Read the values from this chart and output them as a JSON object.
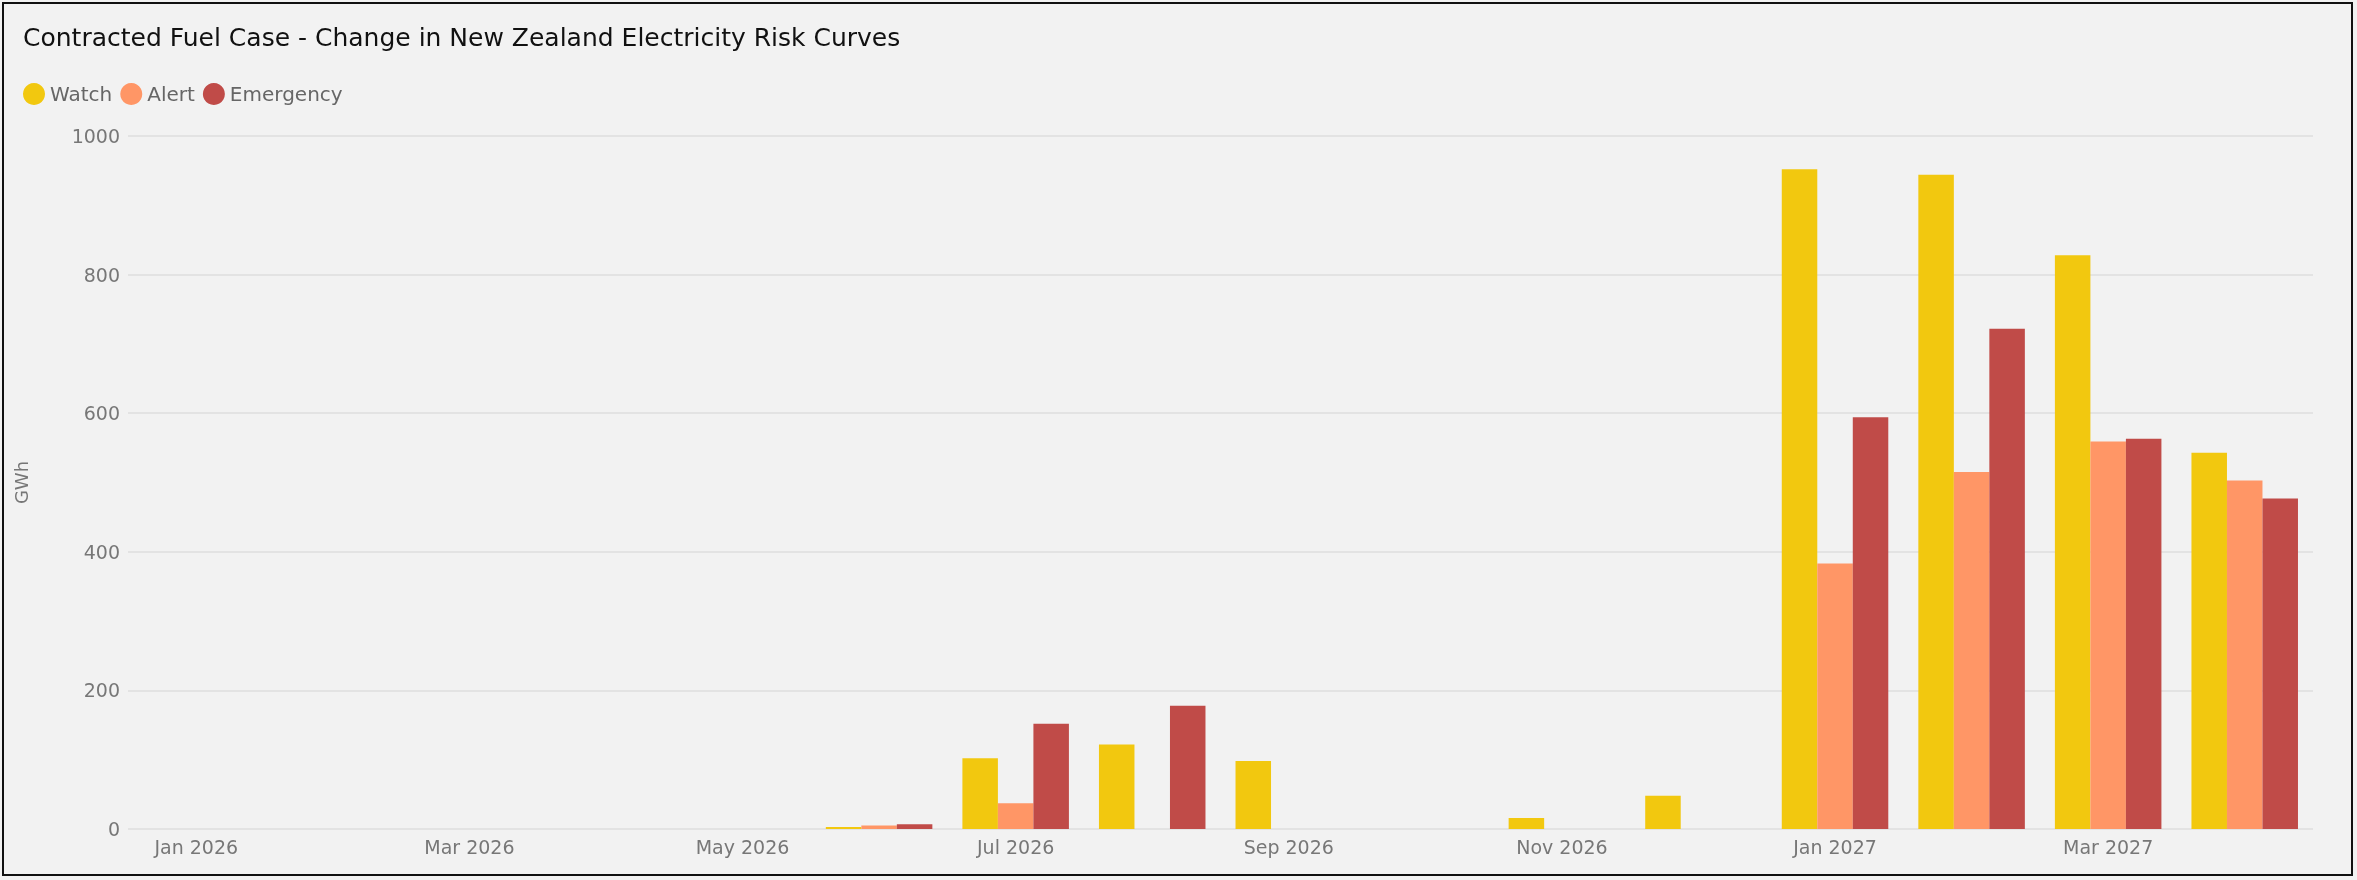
{
  "chart_data": {
    "type": "bar",
    "title": "Contracted Fuel Case - Change in New Zealand Electricity Risk Curves",
    "ylabel": "GWh",
    "categories": [
      "Jan 2026",
      null,
      "Mar 2026",
      null,
      "May 2026",
      null,
      "Jul 2026",
      null,
      "Sep 2026",
      null,
      "Nov 2026",
      null,
      "Jan 2027",
      null,
      "Mar 2027",
      null
    ],
    "series": [
      {
        "name": "Watch",
        "color": "#f2c80f",
        "values": [
          0,
          0,
          0,
          0,
          0,
          3,
          102,
          122,
          98,
          0,
          16,
          48,
          952,
          944,
          828,
          543
        ]
      },
      {
        "name": "Alert",
        "color": "#ff9666",
        "values": [
          0,
          0,
          0,
          0,
          0,
          5,
          37,
          0,
          0,
          0,
          0,
          0,
          383,
          515,
          559,
          503
        ]
      },
      {
        "name": "Emergency",
        "color": "#c04b48",
        "values": [
          0,
          0,
          0,
          0,
          0,
          7,
          152,
          178,
          0,
          0,
          0,
          0,
          594,
          722,
          563,
          477
        ]
      }
    ],
    "ylim": [
      0,
      1000
    ],
    "yticks": [
      0,
      200,
      400,
      600,
      800,
      1000
    ],
    "grid": "y",
    "legend": "top left"
  }
}
